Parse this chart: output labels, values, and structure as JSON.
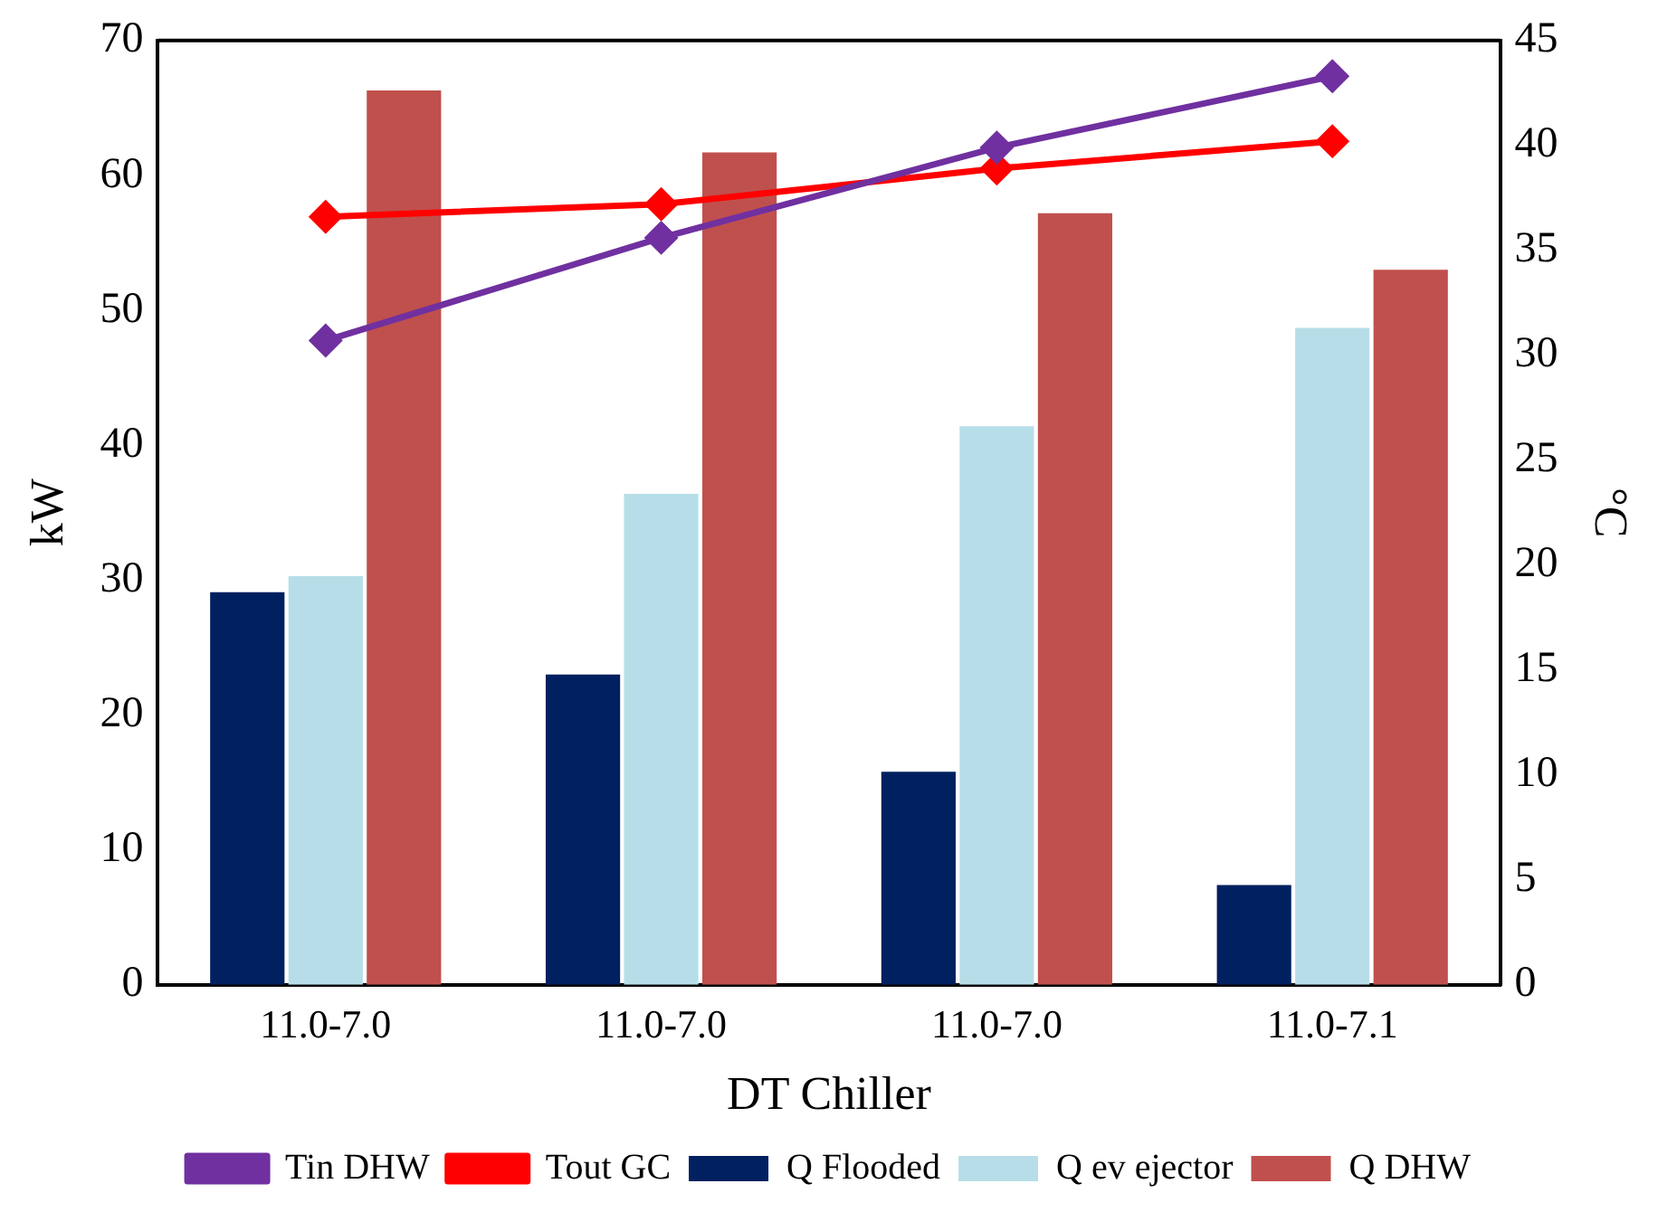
{
  "chart_data": {
    "type": "bar",
    "xlabel": "DT Chiller",
    "ylabel": "kW",
    "y2label": "°C",
    "categories": [
      "11.0-7.0",
      "11.0-7.0",
      "11.0-7.0",
      "11.0-7.1"
    ],
    "series": [
      {
        "name": "Q Flooded",
        "color": "#002060",
        "values": [
          29.1,
          23.0,
          15.8,
          7.4
        ]
      },
      {
        "name": "Q ev ejector",
        "color": "#b7dee8",
        "values": [
          30.3,
          36.4,
          41.4,
          48.7
        ]
      },
      {
        "name": "Q DHW",
        "color": "#c0504d",
        "values": [
          66.3,
          61.7,
          57.2,
          53.0
        ]
      },
      {
        "name": "Tin DHW",
        "type": "line",
        "axis": "y2",
        "color": "#7030a0",
        "values": [
          30.7,
          35.6,
          39.9,
          43.3
        ]
      },
      {
        "name": "Tout GC",
        "type": "line",
        "axis": "y2",
        "color": "#ff0000",
        "values": [
          36.6,
          37.2,
          38.9,
          40.2
        ]
      }
    ],
    "ylim": [
      0,
      70
    ],
    "yticks": [
      0,
      10,
      20,
      30,
      40,
      50,
      60,
      70
    ],
    "y2lim": [
      0,
      45
    ],
    "y2ticks": [
      0,
      5,
      10,
      15,
      20,
      25,
      30,
      35,
      40,
      45
    ],
    "grid": false,
    "legend": "bottom",
    "marker": "diamond",
    "line_style": "solid"
  }
}
